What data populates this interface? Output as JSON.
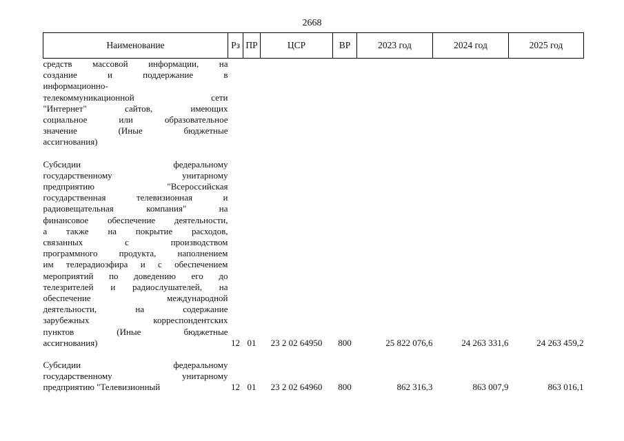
{
  "page_number": "2668",
  "headers": {
    "name": "Наименование",
    "rz": "Рз",
    "pr": "ПР",
    "csr": "ЦСР",
    "vr": "ВР",
    "y2023": "2023 год",
    "y2024": "2024 год",
    "y2025": "2025 год"
  },
  "rows": [
    {
      "name_lines": [
        "средств массовой информации, на",
        "создание и поддержание в",
        "информационно-",
        "телекоммуникационной сети",
        "\"Интернет\" сайтов, имеющих",
        "социальное или образовательное",
        "значение (Иные бюджетные",
        "ассигнования)"
      ],
      "rz": "",
      "pr": "",
      "csr": "",
      "vr": "",
      "y2023": "",
      "y2024": "",
      "y2025": ""
    },
    {
      "name_lines": [
        "Субсидии федеральному",
        "государственному унитарному",
        "предприятию \"Всероссийская",
        "государственная телевизионная и",
        "радиовещательная компания\" на",
        "финансовое обеспечение деятельности,",
        "а также на покрытие расходов,",
        "связанных с производством",
        "программного продукта, наполнением",
        "им телерадиоэфира и с обеспечением",
        "мероприятий по доведению его до",
        "телезрителей и радиослушателей, на",
        "обеспечение международной",
        "деятельности, на содержание",
        "зарубежных корреспондентских",
        "пунктов (Иные бюджетные",
        "ассигнования)"
      ],
      "rz": "12",
      "pr": "01",
      "csr": "23 2 02 64950",
      "vr": "800",
      "y2023": "25 822 076,6",
      "y2024": "24 263 331,6",
      "y2025": "24 263 459,2"
    },
    {
      "name_lines": [
        "Субсидии федеральному",
        "государственному унитарному",
        "предприятию \"Телевизионный"
      ],
      "rz": "12",
      "pr": "01",
      "csr": "23 2 02 64960",
      "vr": "800",
      "y2023": "862 316,3",
      "y2024": "863 007,9",
      "y2025": "863 016,1"
    }
  ]
}
